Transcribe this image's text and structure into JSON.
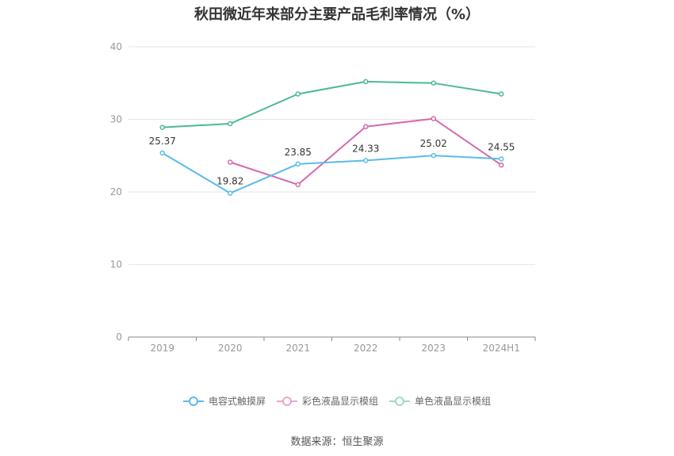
{
  "chart_data": {
    "type": "line",
    "title": "秋田微近年来部分主要产品毛利率情况（%）",
    "categories": [
      "2019",
      "2020",
      "2021",
      "2022",
      "2023",
      "2024H1"
    ],
    "ylim": [
      0,
      40
    ],
    "yticks": [
      0,
      10,
      20,
      30,
      40
    ],
    "grid": true,
    "legend_position": "bottom",
    "series": [
      {
        "name": "电容式触摸屏",
        "color": "#5bbcec",
        "values": [
          25.37,
          19.82,
          23.85,
          24.33,
          25.02,
          24.55
        ],
        "labels": [
          "25.37",
          "19.82",
          "23.85",
          "24.33",
          "25.02",
          "24.55"
        ]
      },
      {
        "name": "彩色液晶显示模组",
        "color": "#d46aae",
        "values": [
          null,
          24.1,
          21.0,
          29.0,
          30.1,
          23.7
        ],
        "labels": null
      },
      {
        "name": "单色液晶显示模组",
        "color": "#4db89a",
        "values": [
          28.9,
          29.4,
          33.5,
          35.2,
          35.0,
          33.5
        ],
        "labels": null
      }
    ],
    "source": "数据来源：恒生聚源"
  }
}
